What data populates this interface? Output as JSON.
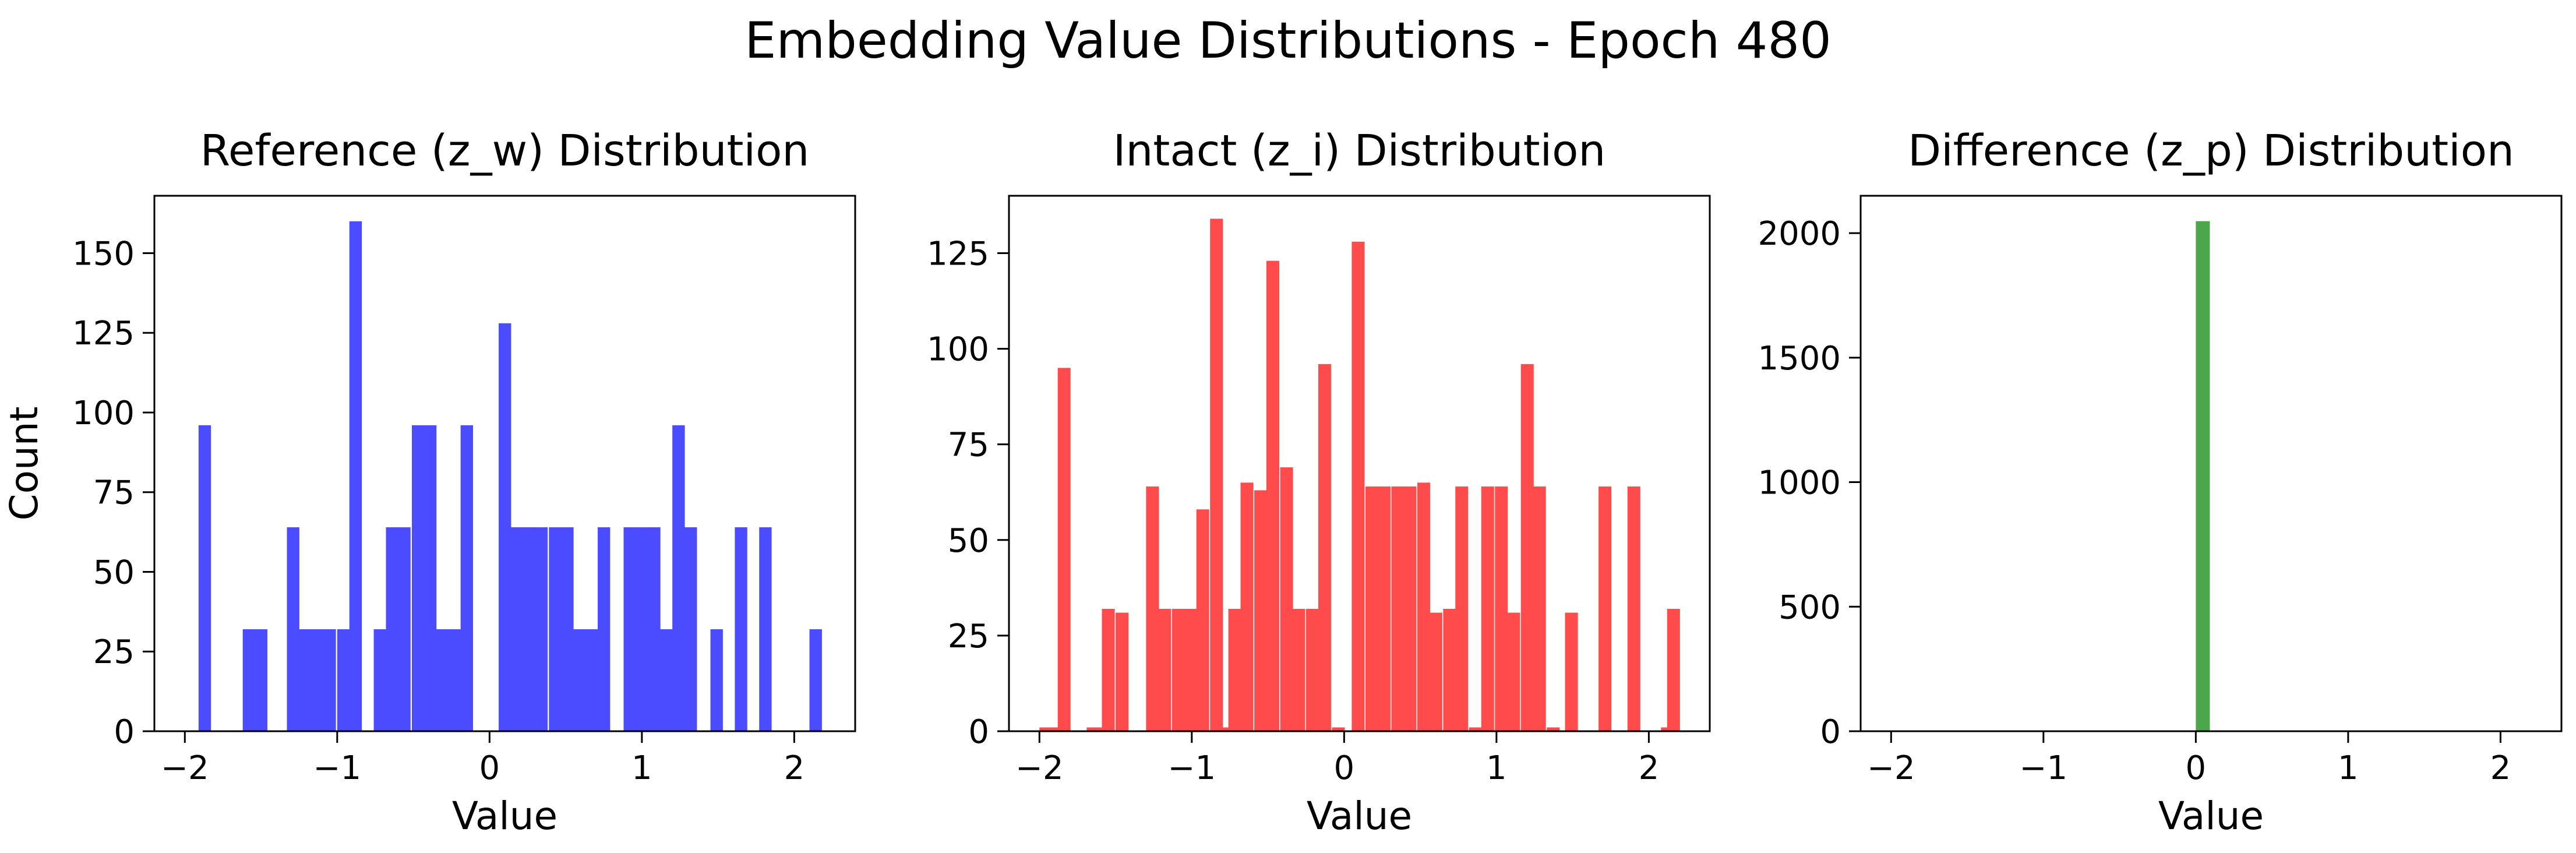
{
  "figure_title": "Embedding Value Distributions - Epoch 480",
  "chart_data": [
    {
      "type": "bar",
      "title": "Reference (z_w) Distribution",
      "xlabel": "Value",
      "ylabel": "Count",
      "color": "#4b4bff",
      "xlim": [
        -2.2,
        2.4
      ],
      "ylim": [
        0,
        168
      ],
      "xticks": [
        -2,
        -1,
        0,
        1,
        2
      ],
      "xtick_labels": [
        "−2",
        "−1",
        "0",
        "1",
        "2"
      ],
      "yticks": [
        0,
        25,
        50,
        75,
        100,
        125,
        150
      ],
      "bin_width": 0.0816,
      "bins": [
        [
          -1.91,
          96
        ],
        [
          -1.62,
          32
        ],
        [
          -1.54,
          32
        ],
        [
          -1.33,
          64
        ],
        [
          -1.25,
          32
        ],
        [
          -1.17,
          32
        ],
        [
          -1.09,
          32
        ],
        [
          -1.0,
          32
        ],
        [
          -0.92,
          160
        ],
        [
          -0.76,
          32
        ],
        [
          -0.68,
          64
        ],
        [
          -0.6,
          64
        ],
        [
          -0.51,
          96
        ],
        [
          -0.43,
          96
        ],
        [
          -0.35,
          32
        ],
        [
          -0.27,
          32
        ],
        [
          -0.19,
          96
        ],
        [
          0.06,
          128
        ],
        [
          0.14,
          64
        ],
        [
          0.22,
          64
        ],
        [
          0.3,
          64
        ],
        [
          0.39,
          64
        ],
        [
          0.47,
          64
        ],
        [
          0.55,
          32
        ],
        [
          0.63,
          32
        ],
        [
          0.71,
          64
        ],
        [
          0.88,
          64
        ],
        [
          0.96,
          64
        ],
        [
          1.04,
          64
        ],
        [
          1.12,
          32
        ],
        [
          1.2,
          96
        ],
        [
          1.28,
          64
        ],
        [
          1.45,
          32
        ],
        [
          1.61,
          64
        ],
        [
          1.77,
          64
        ],
        [
          2.1,
          32
        ]
      ]
    },
    {
      "type": "bar",
      "title": "Intact (z_i) Distribution",
      "xlabel": "Value",
      "ylabel": "",
      "color": "#ff4b4b",
      "xlim": [
        -2.2,
        2.4
      ],
      "ylim": [
        0,
        140
      ],
      "xticks": [
        -2,
        -1,
        0,
        1,
        2
      ],
      "xtick_labels": [
        "−2",
        "−1",
        "0",
        "1",
        "2"
      ],
      "yticks": [
        0,
        25,
        50,
        75,
        100,
        125
      ],
      "bin_width": 0.0843,
      "bins": [
        [
          -2.0,
          1
        ],
        [
          -1.92,
          1
        ],
        [
          -1.88,
          95
        ],
        [
          -1.69,
          1
        ],
        [
          -1.61,
          1
        ],
        [
          -1.59,
          32
        ],
        [
          -1.5,
          31
        ],
        [
          -1.3,
          64
        ],
        [
          -1.22,
          32
        ],
        [
          -1.13,
          32
        ],
        [
          -1.05,
          32
        ],
        [
          -0.97,
          58
        ],
        [
          -0.88,
          134
        ],
        [
          -0.8,
          1
        ],
        [
          -0.76,
          32
        ],
        [
          -0.68,
          65
        ],
        [
          -0.59,
          63
        ],
        [
          -0.51,
          123
        ],
        [
          -0.42,
          69
        ],
        [
          -0.34,
          32
        ],
        [
          -0.25,
          32
        ],
        [
          -0.17,
          96
        ],
        [
          -0.08,
          1
        ],
        [
          0.05,
          128
        ],
        [
          0.14,
          64
        ],
        [
          0.22,
          64
        ],
        [
          0.31,
          64
        ],
        [
          0.39,
          64
        ],
        [
          0.48,
          65
        ],
        [
          0.56,
          31
        ],
        [
          0.65,
          32
        ],
        [
          0.73,
          64
        ],
        [
          0.82,
          1
        ],
        [
          0.9,
          64
        ],
        [
          0.99,
          64
        ],
        [
          1.07,
          31
        ],
        [
          1.16,
          96
        ],
        [
          1.24,
          64
        ],
        [
          1.33,
          1
        ],
        [
          1.45,
          31
        ],
        [
          1.67,
          64
        ],
        [
          1.86,
          64
        ],
        [
          2.08,
          1
        ],
        [
          2.12,
          32
        ]
      ]
    },
    {
      "type": "bar",
      "title": "Difference (z_p) Distribution",
      "xlabel": "Value",
      "ylabel": "",
      "color": "#4ca64c",
      "xlim": [
        -2.2,
        2.4
      ],
      "ylim": [
        0,
        2150
      ],
      "xticks": [
        -2,
        -1,
        0,
        1,
        2
      ],
      "xtick_labels": [
        "−2",
        "−1",
        "0",
        "1",
        "2"
      ],
      "yticks": [
        0,
        500,
        1000,
        1500,
        2000
      ],
      "bin_width": 0.092,
      "bins": [
        [
          -2.0,
          0
        ],
        [
          -1.5,
          0
        ],
        [
          -1.0,
          0
        ],
        [
          -0.5,
          0
        ],
        [
          -0.08,
          3
        ],
        [
          0.0,
          2048
        ],
        [
          0.5,
          0
        ],
        [
          1.0,
          0
        ],
        [
          1.5,
          0
        ],
        [
          2.0,
          0
        ]
      ]
    }
  ]
}
